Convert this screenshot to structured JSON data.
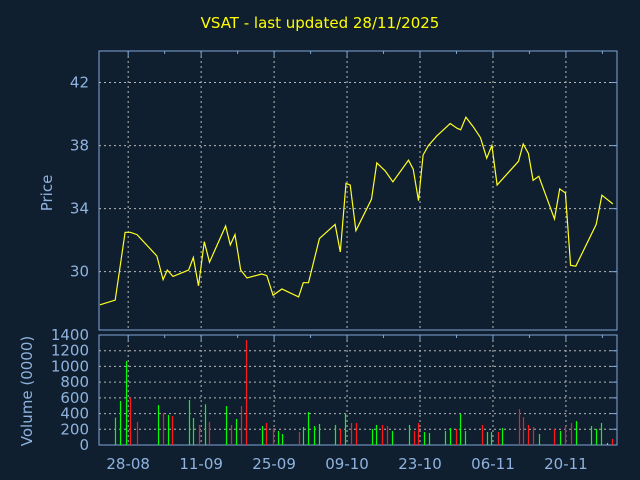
{
  "chart_data": [
    {
      "type": "line",
      "title": "VSAT - last updated 28/11/2025",
      "ylabel": "Price",
      "xlabel": "",
      "x_unit": "days since 28-08",
      "xlim": [
        -5.6,
        93.8
      ],
      "ylim": [
        26.3,
        44.0
      ],
      "yticks": [
        30,
        34,
        38,
        42
      ],
      "grid": true,
      "color": "#ffff22",
      "x": [
        -5.4,
        -2.5,
        -0.6,
        0.4,
        1.7,
        5.5,
        6.7,
        7.5,
        8.6,
        11.6,
        12.5,
        13.5,
        14.6,
        15.6,
        18.7,
        19.6,
        20.5,
        21.6,
        22.8,
        25.6,
        26.6,
        27.8,
        29.5,
        32.7,
        33.6,
        34.6,
        36.7,
        39.7,
        40.7,
        41.8,
        42.6,
        43.7,
        46.7,
        47.7,
        49.3,
        50.8,
        53.8,
        54.7,
        55.7,
        56.6,
        57.6,
        59.2,
        61.8,
        63.1,
        63.8,
        64.8,
        66.2,
        67.6,
        68.8,
        69.8,
        70.8,
        74.9,
        75.8,
        76.8,
        77.7,
        78.8,
        81.8,
        82.8,
        83.9,
        84.9,
        85.9,
        89.8,
        90.9,
        93.0
      ],
      "y": [
        27.9,
        28.2,
        32.5,
        32.5,
        32.35,
        31.0,
        29.5,
        30.1,
        29.7,
        30.1,
        30.9,
        29.1,
        31.9,
        30.6,
        32.9,
        31.7,
        32.35,
        30.1,
        29.6,
        29.85,
        29.75,
        28.5,
        28.9,
        28.4,
        29.3,
        29.3,
        32.1,
        33.0,
        31.25,
        35.6,
        35.5,
        32.6,
        34.6,
        36.9,
        36.4,
        35.7,
        37.07,
        36.5,
        34.5,
        37.4,
        38.0,
        38.6,
        39.4,
        39.1,
        39.0,
        39.8,
        39.2,
        38.5,
        37.2,
        38.0,
        35.5,
        37.0,
        38.1,
        37.5,
        35.8,
        36.05,
        33.35,
        35.25,
        35.0,
        30.4,
        30.35,
        33.0,
        34.85,
        34.3
      ]
    },
    {
      "type": "bar",
      "ylabel": "Volume (0000)",
      "x_unit": "days since 28-08",
      "xlim": [
        -5.6,
        93.8
      ],
      "ylim": [
        0,
        1400
      ],
      "yticks": [
        0,
        200,
        400,
        600,
        800,
        1000,
        1200,
        1400
      ],
      "grid": true,
      "up_color": "#00ff00",
      "down_color": "#ff1a1a",
      "x": [
        -2.5,
        -1.5,
        -0.5,
        0.4,
        1.6,
        5.7,
        6.6,
        7.6,
        8.5,
        11.6,
        12.5,
        13.5,
        14.7,
        15.6,
        18.7,
        19.7,
        20.6,
        21.6,
        22.7,
        25.6,
        26.5,
        27.7,
        28.7,
        29.6,
        32.7,
        33.6,
        34.6,
        35.7,
        36.7,
        39.6,
        40.7,
        41.7,
        42.7,
        43.7,
        46.8,
        47.6,
        48.8,
        49.7,
        50.7,
        53.8,
        54.8,
        55.7,
        56.7,
        57.8,
        60.7,
        61.8,
        62.9,
        63.7,
        64.7,
        67.8,
        68.8,
        69.7,
        70.9,
        71.8,
        74.9,
        75.8,
        76.8,
        77.7,
        78.9,
        81.8,
        82.8,
        83.9,
        84.9,
        85.9,
        88.9,
        89.8,
        90.8,
        91.9,
        92.9
      ],
      "values": [
        348,
        560,
        1069,
        602,
        293,
        509,
        407,
        382,
        369,
        573,
        344,
        255,
        518,
        293,
        496,
        255,
        331,
        496,
        1337,
        242,
        280,
        216,
        178,
        140,
        165,
        229,
        420,
        242,
        267,
        255,
        204,
        407,
        280,
        280,
        204,
        255,
        255,
        242,
        178,
        255,
        178,
        280,
        165,
        153,
        178,
        216,
        204,
        395,
        178,
        255,
        165,
        165,
        165,
        216,
        458,
        356,
        255,
        229,
        140,
        204,
        178,
        242,
        280,
        305,
        242,
        204,
        280,
        25,
        76
      ],
      "direction": [
        "u",
        "u",
        "u",
        "d",
        "d",
        "u",
        "d",
        "u",
        "d",
        "u",
        "u",
        "d",
        "u",
        "d",
        "u",
        "d",
        "u",
        "d",
        "d",
        "u",
        "d",
        "d",
        "u",
        "u",
        "d",
        "u",
        "u",
        "u",
        "u",
        "u",
        "d",
        "u",
        "d",
        "d",
        "u",
        "u",
        "d",
        "d",
        "u",
        "u",
        "d",
        "d",
        "u",
        "u",
        "u",
        "u",
        "d",
        "u",
        "u",
        "d",
        "u",
        "u",
        "d",
        "u",
        "d",
        "d",
        "d",
        "d",
        "u",
        "d",
        "u",
        "d",
        "d",
        "u",
        "u",
        "u",
        "u",
        "n",
        "d"
      ]
    }
  ],
  "x_axis": {
    "tick_labels": [
      "28-08",
      "11-09",
      "25-09",
      "09-10",
      "23-10",
      "06-11",
      "20-11"
    ],
    "tick_values": [
      0,
      14,
      28,
      42,
      56,
      70,
      84
    ]
  }
}
